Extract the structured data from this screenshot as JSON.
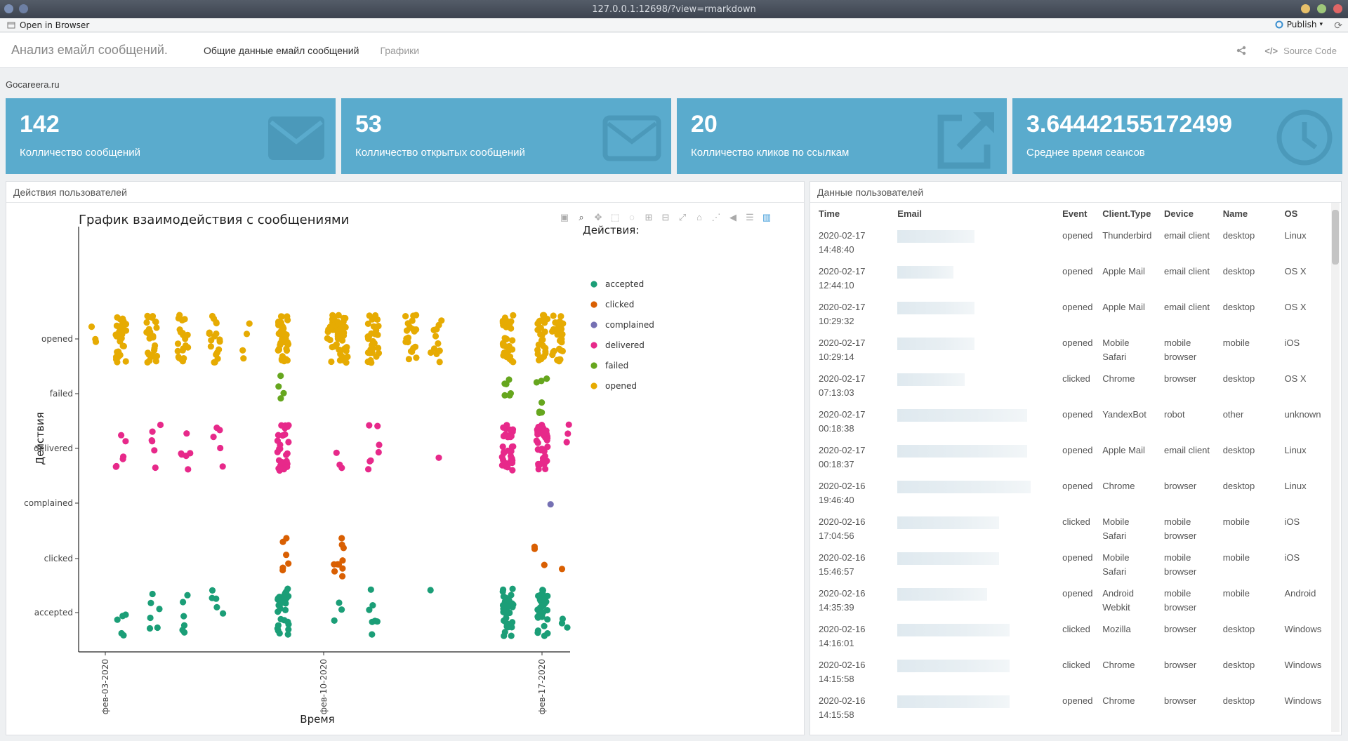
{
  "browser": {
    "url": "127.0.0.1:12698/?view=rmarkdown",
    "open_in_browser": "Open in Browser",
    "publish": "Publish"
  },
  "navbar": {
    "brand": "Анализ емайл сообщений.",
    "tabs": [
      {
        "label": "Общие данные емайл сообщений",
        "active": true
      },
      {
        "label": "Графики",
        "active": false
      }
    ],
    "source_code": "Source Code"
  },
  "site": "Gocareera.ru",
  "value_boxes": [
    {
      "value": "142",
      "caption": "Колличество сообщений",
      "icon": "envelope-icon"
    },
    {
      "value": "53",
      "caption": "Колличество открытых сообщений",
      "icon": "envelope-open-icon"
    },
    {
      "value": "20",
      "caption": "Колличество кликов по ссылкам",
      "icon": "external-link-icon"
    },
    {
      "value": "3.6444215517249​9",
      "caption": "Среднее время сеансов",
      "icon": "clock-icon"
    }
  ],
  "left_panel": {
    "title": "Действия пользователей"
  },
  "right_panel": {
    "title": "Данные пользователей"
  },
  "chart_data": {
    "type": "scatter",
    "title": "График взаимодействия с сообщениями",
    "xlabel": "Время",
    "ylabel": "Действия",
    "x_ticks": [
      "фев-03-2020",
      "фев-10-2020",
      "фев-17-2020"
    ],
    "categories": [
      "accepted",
      "clicked",
      "complained",
      "delivered",
      "failed",
      "opened"
    ],
    "legend_title": "Действия:",
    "legend_placement": "right",
    "colors": {
      "accepted": "#1b9e77",
      "clicked": "#d95f02",
      "complained": "#7570b3",
      "delivered": "#e7298a",
      "failed": "#66a61e",
      "opened": "#e6ab02"
    },
    "grid": false
  },
  "table": {
    "columns": [
      "Time",
      "Email",
      "Event",
      "Client.Type",
      "Device",
      "Name",
      "OS"
    ],
    "rows": [
      {
        "date": "2020-02-17",
        "time": "14:48:40",
        "event": "opened",
        "client": "Thunderbird",
        "device": "email client",
        "name": "desktop",
        "os": "Linux"
      },
      {
        "date": "2020-02-17",
        "time": "12:44:10",
        "event": "opened",
        "client": "Apple Mail",
        "device": "email client",
        "name": "desktop",
        "os": "OS X"
      },
      {
        "date": "2020-02-17",
        "time": "10:29:32",
        "event": "opened",
        "client": "Apple Mail",
        "device": "email client",
        "name": "desktop",
        "os": "OS X"
      },
      {
        "date": "2020-02-17",
        "time": "10:29:14",
        "event": "opened",
        "client": "Mobile Safari",
        "device": "mobile browser",
        "name": "mobile",
        "os": "iOS"
      },
      {
        "date": "2020-02-17",
        "time": "07:13:03",
        "event": "clicked",
        "client": "Chrome",
        "device": "browser",
        "name": "desktop",
        "os": "OS X"
      },
      {
        "date": "2020-02-17",
        "time": "00:18:38",
        "event": "opened",
        "client": "YandexBot",
        "device": "robot",
        "name": "other",
        "os": "unknown"
      },
      {
        "date": "2020-02-17",
        "time": "00:18:37",
        "event": "opened",
        "client": "Apple Mail",
        "device": "email client",
        "name": "desktop",
        "os": "Linux"
      },
      {
        "date": "2020-02-16",
        "time": "19:46:40",
        "event": "opened",
        "client": "Chrome",
        "device": "browser",
        "name": "desktop",
        "os": "Linux"
      },
      {
        "date": "2020-02-16",
        "time": "17:04:56",
        "event": "clicked",
        "client": "Mobile Safari",
        "device": "mobile browser",
        "name": "mobile",
        "os": "iOS"
      },
      {
        "date": "2020-02-16",
        "time": "15:46:57",
        "event": "opened",
        "client": "Mobile Safari",
        "device": "mobile browser",
        "name": "mobile",
        "os": "iOS"
      },
      {
        "date": "2020-02-16",
        "time": "14:35:39",
        "event": "opened",
        "client": "Android Webkit",
        "device": "mobile browser",
        "name": "mobile",
        "os": "Android"
      },
      {
        "date": "2020-02-16",
        "time": "14:16:01",
        "event": "clicked",
        "client": "Mozilla",
        "device": "browser",
        "name": "desktop",
        "os": "Windows"
      },
      {
        "date": "2020-02-16",
        "time": "14:15:58",
        "event": "clicked",
        "client": "Chrome",
        "device": "browser",
        "name": "desktop",
        "os": "Windows"
      },
      {
        "date": "2020-02-16",
        "time": "14:15:58",
        "event": "opened",
        "client": "Chrome",
        "device": "browser",
        "name": "desktop",
        "os": "Windows"
      }
    ]
  }
}
